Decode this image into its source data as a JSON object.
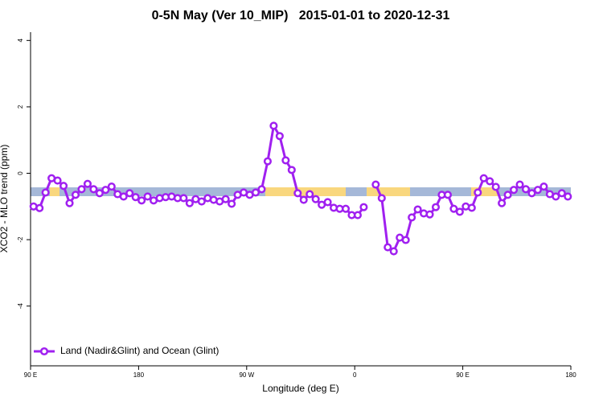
{
  "chart_data": {
    "type": "line",
    "title": "0-5N May (Ver 10_MIP)   2015-01-01 to 2020-12-31",
    "x_label": "Longitude (deg E)",
    "y_label": "XCO2 - MLO trend (ppm)",
    "xlim": [
      90,
      540
    ],
    "ylim": [
      -5.8,
      4.25
    ],
    "xticks": [
      {
        "value": 90,
        "label": "90 E"
      },
      180,
      {
        "value": 270,
        "label": "90 W"
      },
      {
        "value": 360,
        "label": "0"
      },
      {
        "value": 450,
        "label": "90 E"
      },
      {
        "value": 540,
        "label": "180"
      }
    ],
    "yticks": [
      -4,
      -2,
      0,
      2,
      4
    ],
    "legend": "bottom-left",
    "x": [
      92.5,
      97.5,
      102.5,
      107.5,
      112.5,
      117.5,
      122.5,
      127.5,
      132.5,
      137.5,
      142.5,
      147.5,
      152.5,
      157.5,
      162.5,
      167.5,
      172.5,
      177.5,
      182.5,
      187.5,
      192.5,
      197.5,
      202.5,
      207.5,
      212.5,
      217.5,
      222.5,
      227.5,
      232.5,
      237.5,
      242.5,
      247.5,
      252.5,
      257.5,
      262.5,
      267.5,
      272.5,
      277.5,
      282.5,
      287.5,
      292.5,
      297.5,
      302.5,
      307.5,
      312.5,
      317.5,
      322.5,
      327.5,
      332.5,
      337.5,
      342.5,
      347.5,
      352.5,
      357.5,
      362.5,
      367.5,
      372.5,
      377.5,
      382.5,
      387.5,
      392.5,
      397.5,
      402.5,
      407.5,
      412.5,
      417.5,
      422.5,
      427.5,
      432.5,
      437.5,
      442.5,
      447.5,
      452.5,
      457.5,
      462.5,
      467.5,
      472.5,
      477.5,
      482.5,
      487.5,
      492.5,
      497.5,
      502.5,
      507.5,
      512.5,
      517.5,
      522.5,
      527.5,
      532.5,
      537.5
    ],
    "series": [
      {
        "name": "Land (Nadir&Glint) and Ocean (Glint)",
        "color": "#a020f0",
        "values": [
          -1.0,
          -1.05,
          -0.58,
          -0.15,
          -0.22,
          -0.38,
          -0.9,
          -0.65,
          -0.48,
          -0.32,
          -0.48,
          -0.6,
          -0.5,
          -0.4,
          -0.63,
          -0.7,
          -0.6,
          -0.72,
          -0.82,
          -0.7,
          -0.82,
          -0.75,
          -0.72,
          -0.7,
          -0.75,
          -0.75,
          -0.9,
          -0.78,
          -0.85,
          -0.75,
          -0.8,
          -0.85,
          -0.78,
          -0.92,
          -0.65,
          -0.58,
          -0.65,
          -0.58,
          -0.48,
          0.36,
          1.43,
          1.12,
          0.39,
          0.1,
          -0.6,
          -0.8,
          -0.63,
          -0.78,
          -0.95,
          -0.87,
          -1.04,
          -1.07,
          -1.07,
          -1.26,
          -1.26,
          -1.02,
          null,
          -0.34,
          -0.75,
          -2.23,
          -2.35,
          -1.94,
          -2.01,
          -1.33,
          -1.09,
          -1.21,
          -1.24,
          -1.02,
          -0.65,
          -0.65,
          -1.07,
          -1.16,
          -1.0,
          -1.04,
          -0.58,
          -0.15,
          -0.24,
          -0.41,
          -0.9,
          -0.65,
          -0.5,
          -0.34,
          -0.48,
          -0.6,
          -0.5,
          -0.4,
          -0.63,
          -0.7,
          -0.6,
          -0.7
        ]
      }
    ]
  }
}
